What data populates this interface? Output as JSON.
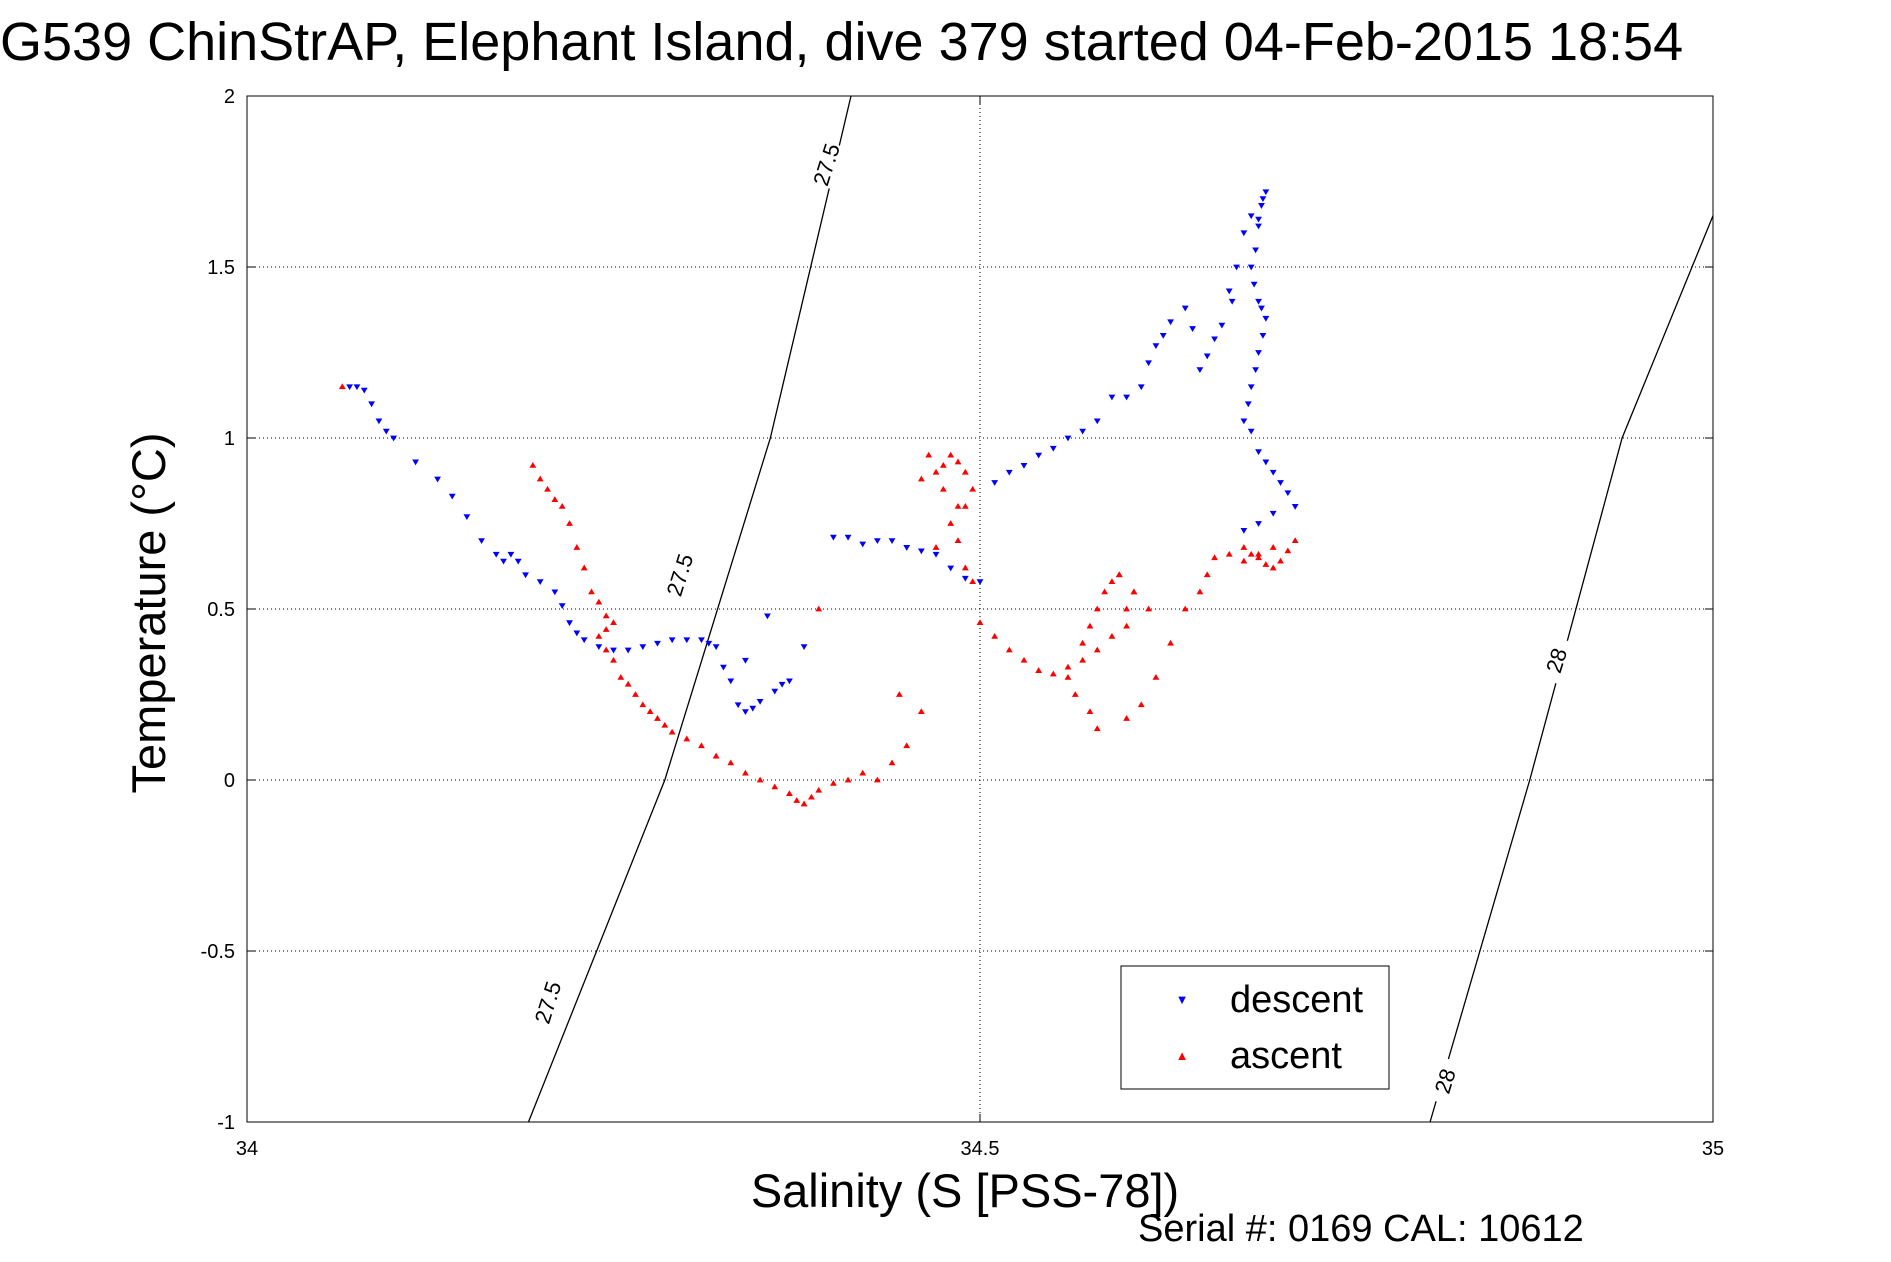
{
  "chart_data": {
    "type": "scatter",
    "title": "G539 ChinStrAP, Elephant Island, dive 379 started 04-Feb-2015 18:54",
    "xlabel": "Salinity (S [PSS-78])",
    "ylabel": "Temperature (°C)",
    "xlim": [
      34,
      35
    ],
    "ylim": [
      -1,
      2
    ],
    "xticks": [
      "34",
      "34.5",
      "35"
    ],
    "yticks": [
      "-1",
      "-0.5",
      "0",
      "0.5",
      "1",
      "1.5",
      "2"
    ],
    "grid": true,
    "legend_position": "bottom-right",
    "annotation": "Serial #: 0169 CAL: 10612",
    "contours": [
      {
        "label": "27.5",
        "points": [
          [
            34.192,
            -1.0
          ],
          [
            34.285,
            0.0
          ],
          [
            34.357,
            1.0
          ],
          [
            34.412,
            2.0
          ]
        ],
        "label_positions": [
          [
            34.205,
            -0.65
          ],
          [
            34.295,
            0.6
          ],
          [
            34.395,
            1.8
          ]
        ]
      },
      {
        "label": "28",
        "points": [
          [
            34.807,
            -1.0
          ],
          [
            34.875,
            0.0
          ],
          [
            34.938,
            1.0
          ],
          [
            35.0,
            1.65
          ]
        ],
        "label_positions": [
          [
            34.817,
            -0.88
          ],
          [
            34.893,
            0.35
          ]
        ]
      }
    ],
    "series": [
      {
        "name": "descent",
        "color": "#0000ff",
        "marker": "triangle-down",
        "x": [
          34.07,
          34.075,
          34.08,
          34.085,
          34.09,
          34.095,
          34.1,
          34.115,
          34.13,
          34.14,
          34.15,
          34.16,
          34.17,
          34.175,
          34.18,
          34.185,
          34.19,
          34.2,
          34.21,
          34.215,
          34.22,
          34.225,
          34.23,
          34.24,
          34.25,
          34.26,
          34.27,
          34.28,
          34.29,
          34.3,
          34.31,
          34.315,
          34.32,
          34.325,
          34.33,
          34.335,
          34.34,
          34.345,
          34.35,
          34.36,
          34.365,
          34.37,
          34.38,
          34.34,
          34.355,
          34.4,
          34.41,
          34.42,
          34.43,
          34.44,
          34.45,
          34.46,
          34.47,
          34.48,
          34.49,
          34.5,
          34.51,
          34.52,
          34.53,
          34.54,
          34.55,
          34.56,
          34.57,
          34.58,
          34.59,
          34.6,
          34.61,
          34.615,
          34.62,
          34.625,
          34.63,
          34.64,
          34.645,
          34.65,
          34.655,
          34.66,
          34.665,
          34.67,
          34.672,
          34.675,
          34.68,
          34.685,
          34.69,
          34.692,
          34.695,
          34.693,
          34.69,
          34.688,
          34.685,
          34.687,
          34.69,
          34.692,
          34.695,
          34.693,
          34.69,
          34.688,
          34.685,
          34.683,
          34.68,
          34.685,
          34.69,
          34.695,
          34.7,
          34.705,
          34.71,
          34.715,
          34.7,
          34.69,
          34.68
        ],
        "y": [
          1.15,
          1.15,
          1.14,
          1.1,
          1.05,
          1.02,
          1.0,
          0.93,
          0.88,
          0.83,
          0.77,
          0.7,
          0.66,
          0.64,
          0.66,
          0.64,
          0.6,
          0.58,
          0.55,
          0.51,
          0.46,
          0.43,
          0.41,
          0.39,
          0.38,
          0.38,
          0.39,
          0.4,
          0.41,
          0.41,
          0.41,
          0.4,
          0.39,
          0.33,
          0.29,
          0.22,
          0.2,
          0.21,
          0.23,
          0.26,
          0.28,
          0.29,
          0.39,
          0.35,
          0.48,
          0.71,
          0.71,
          0.69,
          0.7,
          0.7,
          0.68,
          0.67,
          0.66,
          0.62,
          0.59,
          0.58,
          0.87,
          0.9,
          0.92,
          0.95,
          0.97,
          1.0,
          1.02,
          1.05,
          1.12,
          1.12,
          1.15,
          1.22,
          1.27,
          1.3,
          1.34,
          1.38,
          1.32,
          1.2,
          1.24,
          1.29,
          1.33,
          1.43,
          1.4,
          1.5,
          1.6,
          1.65,
          1.64,
          1.68,
          1.72,
          1.7,
          1.62,
          1.55,
          1.5,
          1.45,
          1.4,
          1.38,
          1.35,
          1.3,
          1.25,
          1.2,
          1.15,
          1.1,
          1.05,
          1.02,
          0.96,
          0.93,
          0.9,
          0.87,
          0.84,
          0.8,
          0.78,
          0.75,
          0.73
        ]
      },
      {
        "name": "ascent",
        "color": "#ff0000",
        "marker": "triangle-up",
        "x": [
          34.065,
          34.195,
          34.2,
          34.205,
          34.21,
          34.215,
          34.22,
          34.225,
          34.23,
          34.235,
          34.24,
          34.245,
          34.25,
          34.245,
          34.24,
          34.245,
          34.25,
          34.255,
          34.26,
          34.265,
          34.27,
          34.275,
          34.28,
          34.285,
          34.29,
          34.3,
          34.31,
          34.32,
          34.33,
          34.34,
          34.35,
          34.36,
          34.37,
          34.375,
          34.38,
          34.385,
          34.39,
          34.4,
          34.41,
          34.42,
          34.43,
          34.44,
          34.45,
          34.46,
          34.39,
          34.445,
          34.47,
          34.48,
          34.485,
          34.475,
          34.47,
          34.46,
          34.465,
          34.475,
          34.48,
          34.485,
          34.49,
          34.495,
          34.49,
          34.485,
          34.49,
          34.495,
          34.5,
          34.51,
          34.52,
          34.53,
          34.54,
          34.55,
          34.56,
          34.57,
          34.58,
          34.59,
          34.6,
          34.605,
          34.595,
          34.59,
          34.585,
          34.58,
          34.575,
          34.57,
          34.56,
          34.565,
          34.575,
          34.58,
          34.6,
          34.61,
          34.62,
          34.63,
          34.64,
          34.65,
          34.655,
          34.66,
          34.67,
          34.68,
          34.685,
          34.69,
          34.695,
          34.7,
          34.705,
          34.71,
          34.715,
          34.7,
          34.69,
          34.68,
          34.595,
          34.605,
          34.615,
          34.6
        ],
        "y": [
          1.15,
          0.92,
          0.88,
          0.85,
          0.82,
          0.8,
          0.75,
          0.68,
          0.62,
          0.55,
          0.52,
          0.48,
          0.46,
          0.44,
          0.42,
          0.38,
          0.35,
          0.3,
          0.28,
          0.25,
          0.22,
          0.2,
          0.18,
          0.16,
          0.14,
          0.12,
          0.1,
          0.07,
          0.05,
          0.02,
          0.0,
          -0.02,
          -0.04,
          -0.06,
          -0.07,
          -0.05,
          -0.03,
          -0.01,
          0.0,
          0.02,
          0.0,
          0.05,
          0.1,
          0.2,
          0.5,
          0.25,
          0.68,
          0.75,
          0.8,
          0.85,
          0.9,
          0.88,
          0.95,
          0.92,
          0.95,
          0.93,
          0.9,
          0.85,
          0.8,
          0.7,
          0.62,
          0.58,
          0.46,
          0.42,
          0.38,
          0.35,
          0.32,
          0.31,
          0.33,
          0.35,
          0.38,
          0.42,
          0.5,
          0.55,
          0.6,
          0.58,
          0.55,
          0.5,
          0.45,
          0.4,
          0.3,
          0.25,
          0.2,
          0.15,
          0.18,
          0.22,
          0.3,
          0.4,
          0.5,
          0.55,
          0.6,
          0.65,
          0.66,
          0.68,
          0.66,
          0.65,
          0.63,
          0.62,
          0.64,
          0.67,
          0.7,
          0.68,
          0.66,
          0.64,
          0.6,
          0.55,
          0.5,
          0.45
        ]
      }
    ]
  }
}
